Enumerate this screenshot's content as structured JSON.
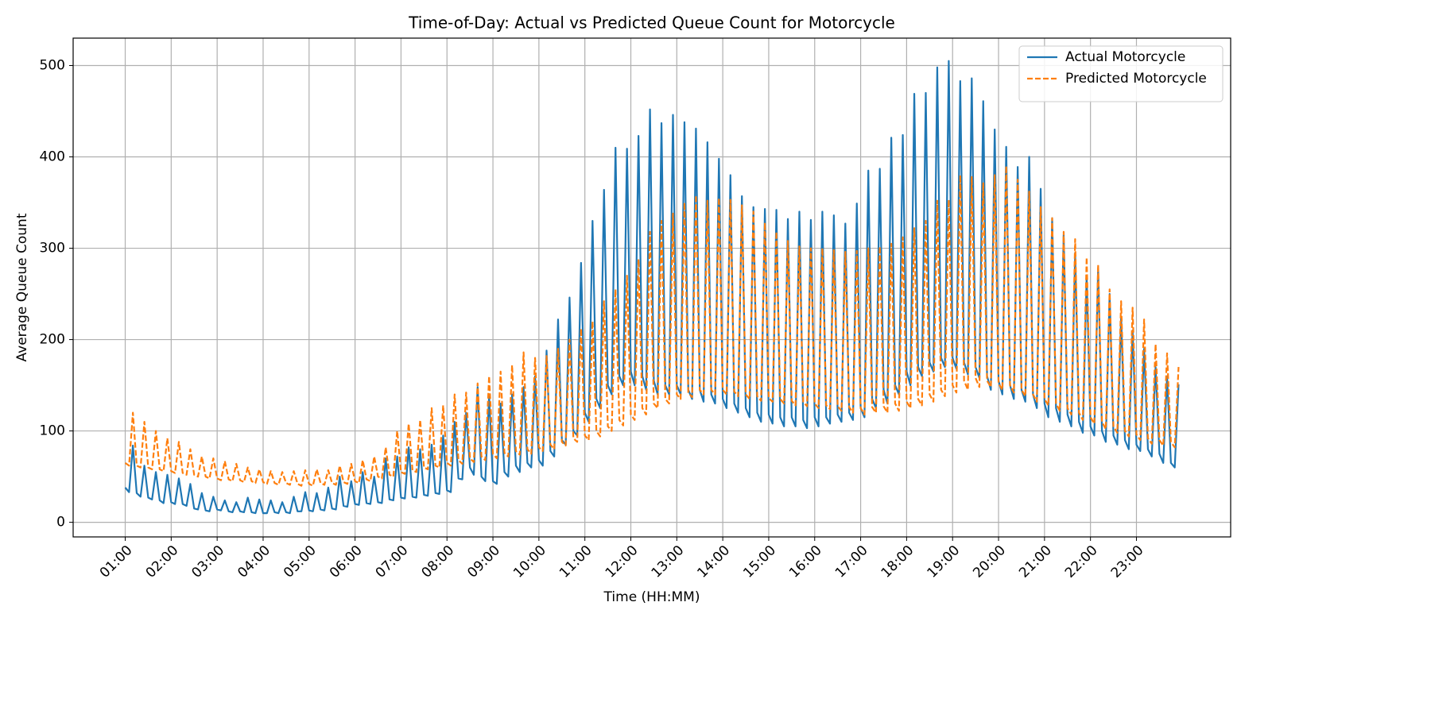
{
  "chart_data": {
    "type": "line",
    "title": "Time-of-Day: Actual vs Predicted Queue Count for Motorcycle",
    "x_label": "Time (HH:MM)",
    "y_label": "Average Queue Count",
    "x": [
      "01:00",
      "01:05",
      "01:10",
      "01:15",
      "01:20",
      "01:25",
      "01:30",
      "01:35",
      "01:40",
      "01:45",
      "01:50",
      "01:55",
      "02:00",
      "02:05",
      "02:10",
      "02:15",
      "02:20",
      "02:25",
      "02:30",
      "02:35",
      "02:40",
      "02:45",
      "02:50",
      "02:55",
      "03:00",
      "03:05",
      "03:10",
      "03:15",
      "03:20",
      "03:25",
      "03:30",
      "03:35",
      "03:40",
      "03:45",
      "03:50",
      "03:55",
      "04:00",
      "04:05",
      "04:10",
      "04:15",
      "04:20",
      "04:25",
      "04:30",
      "04:35",
      "04:40",
      "04:45",
      "04:50",
      "04:55",
      "05:00",
      "05:05",
      "05:10",
      "05:15",
      "05:20",
      "05:25",
      "05:30",
      "05:35",
      "05:40",
      "05:45",
      "05:50",
      "05:55",
      "06:00",
      "06:05",
      "06:10",
      "06:15",
      "06:20",
      "06:25",
      "06:30",
      "06:35",
      "06:40",
      "06:45",
      "06:50",
      "06:55",
      "07:00",
      "07:05",
      "07:10",
      "07:15",
      "07:20",
      "07:25",
      "07:30",
      "07:35",
      "07:40",
      "07:45",
      "07:50",
      "07:55",
      "08:00",
      "08:05",
      "08:10",
      "08:15",
      "08:20",
      "08:25",
      "08:30",
      "08:35",
      "08:40",
      "08:45",
      "08:50",
      "08:55",
      "09:00",
      "09:05",
      "09:10",
      "09:15",
      "09:20",
      "09:25",
      "09:30",
      "09:35",
      "09:40",
      "09:45",
      "09:50",
      "09:55",
      "10:00",
      "10:05",
      "10:10",
      "10:15",
      "10:20",
      "10:25",
      "10:30",
      "10:35",
      "10:40",
      "10:45",
      "10:50",
      "10:55",
      "11:00",
      "11:05",
      "11:10",
      "11:15",
      "11:20",
      "11:25",
      "11:30",
      "11:35",
      "11:40",
      "11:45",
      "11:50",
      "11:55",
      "12:00",
      "12:05",
      "12:10",
      "12:15",
      "12:20",
      "12:25",
      "12:30",
      "12:35",
      "12:40",
      "12:45",
      "12:50",
      "12:55",
      "13:00",
      "13:05",
      "13:10",
      "13:15",
      "13:20",
      "13:25",
      "13:30",
      "13:35",
      "13:40",
      "13:45",
      "13:50",
      "13:55",
      "14:00",
      "14:05",
      "14:10",
      "14:15",
      "14:20",
      "14:25",
      "14:30",
      "14:35",
      "14:40",
      "14:45",
      "14:50",
      "14:55",
      "15:00",
      "15:05",
      "15:10",
      "15:15",
      "15:20",
      "15:25",
      "15:30",
      "15:35",
      "15:40",
      "15:45",
      "15:50",
      "15:55",
      "16:00",
      "16:05",
      "16:10",
      "16:15",
      "16:20",
      "16:25",
      "16:30",
      "16:35",
      "16:40",
      "16:45",
      "16:50",
      "16:55",
      "17:00",
      "17:05",
      "17:10",
      "17:15",
      "17:20",
      "17:25",
      "17:30",
      "17:35",
      "17:40",
      "17:45",
      "17:50",
      "17:55",
      "18:00",
      "18:05",
      "18:10",
      "18:15",
      "18:20",
      "18:25",
      "18:30",
      "18:35",
      "18:40",
      "18:45",
      "18:50",
      "18:55",
      "19:00",
      "19:05",
      "19:10",
      "19:15",
      "19:20",
      "19:25",
      "19:30",
      "19:35",
      "19:40",
      "19:45",
      "19:50",
      "19:55",
      "20:00",
      "20:05",
      "20:10",
      "20:15",
      "20:20",
      "20:25",
      "20:30",
      "20:35",
      "20:40",
      "20:45",
      "20:50",
      "20:55",
      "21:00",
      "21:05",
      "21:10",
      "21:15",
      "21:20",
      "21:25",
      "21:30",
      "21:35",
      "21:40",
      "21:45",
      "21:50",
      "21:55",
      "22:00",
      "22:05",
      "22:10",
      "22:15",
      "22:20",
      "22:25",
      "22:30",
      "22:35",
      "22:40",
      "22:45",
      "22:50",
      "22:55",
      "23:00",
      "23:05",
      "23:10",
      "23:15",
      "23:20",
      "23:25",
      "23:30",
      "23:35",
      "23:40",
      "23:45",
      "23:50",
      "23:55"
    ],
    "series": [
      {
        "name": "Actual Motorcycle",
        "color": "#1f77b4",
        "linestyle": "solid",
        "values": [
          38,
          33,
          84,
          32,
          28,
          62,
          27,
          25,
          55,
          24,
          21,
          52,
          22,
          20,
          48,
          20,
          18,
          42,
          15,
          14,
          32,
          13,
          12,
          28,
          14,
          13,
          24,
          12,
          11,
          22,
          12,
          11,
          27,
          11,
          10,
          25,
          10,
          10,
          24,
          11,
          10,
          22,
          11,
          10,
          28,
          12,
          12,
          33,
          13,
          12,
          32,
          14,
          13,
          38,
          15,
          14,
          50,
          18,
          17,
          45,
          20,
          19,
          55,
          21,
          20,
          50,
          22,
          21,
          70,
          25,
          24,
          72,
          27,
          26,
          82,
          28,
          27,
          80,
          30,
          29,
          85,
          32,
          31,
          95,
          35,
          33,
          110,
          48,
          47,
          120,
          60,
          52,
          148,
          50,
          45,
          138,
          45,
          42,
          130,
          55,
          50,
          140,
          62,
          55,
          148,
          65,
          60,
          160,
          68,
          62,
          188,
          78,
          72,
          222,
          90,
          85,
          246,
          100,
          95,
          284,
          120,
          110,
          330,
          135,
          125,
          364,
          150,
          140,
          410,
          160,
          150,
          409,
          165,
          150,
          423,
          160,
          145,
          452,
          155,
          140,
          437,
          150,
          140,
          446,
          150,
          140,
          438,
          145,
          135,
          431,
          145,
          132,
          416,
          140,
          130,
          398,
          135,
          125,
          380,
          130,
          120,
          357,
          125,
          115,
          345,
          120,
          110,
          343,
          118,
          108,
          342,
          115,
          105,
          332,
          115,
          105,
          340,
          112,
          103,
          331,
          115,
          105,
          340,
          115,
          108,
          336,
          118,
          110,
          327,
          120,
          112,
          349,
          125,
          115,
          385,
          135,
          125,
          387,
          145,
          130,
          421,
          150,
          140,
          424,
          165,
          150,
          469,
          170,
          160,
          470,
          175,
          165,
          498,
          180,
          170,
          505,
          180,
          168,
          483,
          175,
          162,
          486,
          170,
          158,
          461,
          160,
          145,
          430,
          155,
          140,
          411,
          150,
          135,
          389,
          145,
          132,
          400,
          140,
          125,
          365,
          130,
          115,
          333,
          125,
          110,
          315,
          118,
          105,
          295,
          110,
          98,
          270,
          105,
          95,
          278,
          100,
          88,
          250,
          95,
          85,
          225,
          90,
          80,
          210,
          85,
          78,
          190,
          80,
          72,
          170,
          75,
          65,
          160,
          65,
          60,
          151
        ]
      },
      {
        "name": "Predicted Motorcycle",
        "color": "#ff7f0e",
        "linestyle": "dashed",
        "values": [
          65,
          62,
          120,
          62,
          60,
          110,
          60,
          58,
          100,
          58,
          56,
          92,
          56,
          54,
          88,
          54,
          52,
          80,
          52,
          50,
          72,
          50,
          48,
          70,
          48,
          46,
          67,
          47,
          45,
          64,
          46,
          44,
          60,
          45,
          43,
          58,
          44,
          42,
          56,
          43,
          41,
          55,
          43,
          41,
          56,
          42,
          40,
          57,
          42,
          40,
          58,
          43,
          41,
          57,
          43,
          41,
          62,
          44,
          42,
          64,
          45,
          43,
          68,
          47,
          45,
          72,
          50,
          48,
          82,
          52,
          50,
          100,
          55,
          53,
          108,
          57,
          55,
          112,
          60,
          58,
          125,
          62,
          60,
          128,
          65,
          62,
          140,
          68,
          64,
          142,
          70,
          66,
          152,
          72,
          68,
          160,
          75,
          70,
          165,
          76,
          72,
          172,
          78,
          74,
          186,
          80,
          75,
          180,
          82,
          78,
          182,
          85,
          80,
          190,
          88,
          84,
          200,
          92,
          88,
          212,
          95,
          90,
          220,
          100,
          94,
          242,
          105,
          100,
          255,
          112,
          106,
          270,
          118,
          112,
          288,
          125,
          118,
          318,
          130,
          125,
          330,
          135,
          130,
          338,
          140,
          135,
          350,
          142,
          137,
          358,
          145,
          140,
          352,
          145,
          140,
          355,
          145,
          140,
          353,
          143,
          138,
          347,
          140,
          135,
          340,
          138,
          133,
          328,
          136,
          132,
          318,
          135,
          130,
          308,
          133,
          128,
          302,
          132,
          127,
          300,
          130,
          125,
          300,
          128,
          124,
          298,
          127,
          122,
          296,
          126,
          120,
          297,
          125,
          118,
          300,
          126,
          120,
          302,
          127,
          120,
          305,
          130,
          122,
          312,
          132,
          125,
          322,
          135,
          128,
          330,
          140,
          132,
          352,
          145,
          138,
          353,
          150,
          142,
          380,
          155,
          145,
          378,
          158,
          148,
          372,
          155,
          148,
          380,
          152,
          145,
          390,
          150,
          142,
          375,
          145,
          138,
          362,
          140,
          132,
          345,
          135,
          128,
          333,
          130,
          122,
          318,
          125,
          118,
          310,
          120,
          112,
          290,
          115,
          108,
          282,
          110,
          102,
          255,
          105,
          98,
          242,
          100,
          94,
          235,
          96,
          90,
          222,
          92,
          86,
          195,
          90,
          84,
          185,
          88,
          82,
          170
        ]
      }
    ],
    "xticks": [
      "01:00",
      "02:00",
      "03:00",
      "04:00",
      "05:00",
      "06:00",
      "07:00",
      "08:00",
      "09:00",
      "10:00",
      "11:00",
      "12:00",
      "13:00",
      "14:00",
      "15:00",
      "16:00",
      "17:00",
      "18:00",
      "19:00",
      "20:00",
      "21:00",
      "22:00",
      "23:00"
    ],
    "ylim": [
      -16,
      530
    ],
    "yticks": [
      0,
      100,
      200,
      300,
      400,
      500
    ],
    "grid": true,
    "legend": "upper right"
  }
}
